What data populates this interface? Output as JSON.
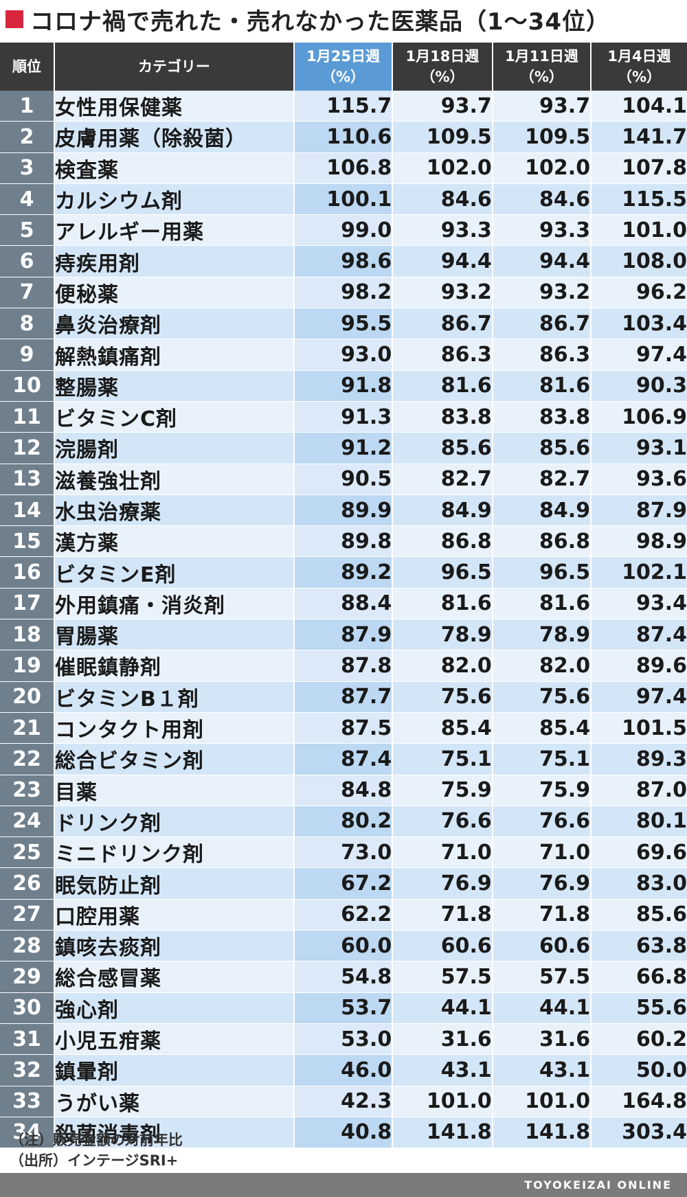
{
  "title": "コロナ禍で売れた・売れなかった医薬品（1〜34位）",
  "headers": {
    "rank": "順位",
    "category": "カテゴリー",
    "w1": "1月25日週",
    "w2": "1月18日週",
    "w3": "1月11日週",
    "w4": "1月4日週",
    "unit": "（%）"
  },
  "rows": [
    {
      "rank": "1",
      "category": "女性用保健薬",
      "w1": "115.7",
      "w2": "93.7",
      "w3": "93.7",
      "w4": "104.1"
    },
    {
      "rank": "2",
      "category": "皮膚用薬（除殺菌）",
      "w1": "110.6",
      "w2": "109.5",
      "w3": "109.5",
      "w4": "141.7"
    },
    {
      "rank": "3",
      "category": "検査薬",
      "w1": "106.8",
      "w2": "102.0",
      "w3": "102.0",
      "w4": "107.8"
    },
    {
      "rank": "4",
      "category": "カルシウム剤",
      "w1": "100.1",
      "w2": "84.6",
      "w3": "84.6",
      "w4": "115.5"
    },
    {
      "rank": "5",
      "category": "アレルギー用薬",
      "w1": "99.0",
      "w2": "93.3",
      "w3": "93.3",
      "w4": "101.0"
    },
    {
      "rank": "6",
      "category": "痔疾用剤",
      "w1": "98.6",
      "w2": "94.4",
      "w3": "94.4",
      "w4": "108.0"
    },
    {
      "rank": "7",
      "category": "便秘薬",
      "w1": "98.2",
      "w2": "93.2",
      "w3": "93.2",
      "w4": "96.2"
    },
    {
      "rank": "8",
      "category": "鼻炎治療剤",
      "w1": "95.5",
      "w2": "86.7",
      "w3": "86.7",
      "w4": "103.4"
    },
    {
      "rank": "9",
      "category": "解熱鎮痛剤",
      "w1": "93.0",
      "w2": "86.3",
      "w3": "86.3",
      "w4": "97.4"
    },
    {
      "rank": "10",
      "category": "整腸薬",
      "w1": "91.8",
      "w2": "81.6",
      "w3": "81.6",
      "w4": "90.3"
    },
    {
      "rank": "11",
      "category": "ビタミンC剤",
      "w1": "91.3",
      "w2": "83.8",
      "w3": "83.8",
      "w4": "106.9"
    },
    {
      "rank": "12",
      "category": "浣腸剤",
      "w1": "91.2",
      "w2": "85.6",
      "w3": "85.6",
      "w4": "93.1"
    },
    {
      "rank": "13",
      "category": "滋養強壮剤",
      "w1": "90.5",
      "w2": "82.7",
      "w3": "82.7",
      "w4": "93.6"
    },
    {
      "rank": "14",
      "category": "水虫治療薬",
      "w1": "89.9",
      "w2": "84.9",
      "w3": "84.9",
      "w4": "87.9"
    },
    {
      "rank": "15",
      "category": "漢方薬",
      "w1": "89.8",
      "w2": "86.8",
      "w3": "86.8",
      "w4": "98.9"
    },
    {
      "rank": "16",
      "category": "ビタミンE剤",
      "w1": "89.2",
      "w2": "96.5",
      "w3": "96.5",
      "w4": "102.1"
    },
    {
      "rank": "17",
      "category": "外用鎮痛・消炎剤",
      "w1": "88.4",
      "w2": "81.6",
      "w3": "81.6",
      "w4": "93.4"
    },
    {
      "rank": "18",
      "category": "胃腸薬",
      "w1": "87.9",
      "w2": "78.9",
      "w3": "78.9",
      "w4": "87.4"
    },
    {
      "rank": "19",
      "category": "催眠鎮静剤",
      "w1": "87.8",
      "w2": "82.0",
      "w3": "82.0",
      "w4": "89.6"
    },
    {
      "rank": "20",
      "category": "ビタミンB１剤",
      "w1": "87.7",
      "w2": "75.6",
      "w3": "75.6",
      "w4": "97.4"
    },
    {
      "rank": "21",
      "category": "コンタクト用剤",
      "w1": "87.5",
      "w2": "85.4",
      "w3": "85.4",
      "w4": "101.5"
    },
    {
      "rank": "22",
      "category": "総合ビタミン剤",
      "w1": "87.4",
      "w2": "75.1",
      "w3": "75.1",
      "w4": "89.3"
    },
    {
      "rank": "23",
      "category": "目薬",
      "w1": "84.8",
      "w2": "75.9",
      "w3": "75.9",
      "w4": "87.0"
    },
    {
      "rank": "24",
      "category": "ドリンク剤",
      "w1": "80.2",
      "w2": "76.6",
      "w3": "76.6",
      "w4": "80.1"
    },
    {
      "rank": "25",
      "category": "ミニドリンク剤",
      "w1": "73.0",
      "w2": "71.0",
      "w3": "71.0",
      "w4": "69.6"
    },
    {
      "rank": "26",
      "category": "眠気防止剤",
      "w1": "67.2",
      "w2": "76.9",
      "w3": "76.9",
      "w4": "83.0"
    },
    {
      "rank": "27",
      "category": "口腔用薬",
      "w1": "62.2",
      "w2": "71.8",
      "w3": "71.8",
      "w4": "85.6"
    },
    {
      "rank": "28",
      "category": "鎮咳去痰剤",
      "w1": "60.0",
      "w2": "60.6",
      "w3": "60.6",
      "w4": "63.8"
    },
    {
      "rank": "29",
      "category": "総合感冒薬",
      "w1": "54.8",
      "w2": "57.5",
      "w3": "57.5",
      "w4": "66.8"
    },
    {
      "rank": "30",
      "category": "強心剤",
      "w1": "53.7",
      "w2": "44.1",
      "w3": "44.1",
      "w4": "55.6"
    },
    {
      "rank": "31",
      "category": "小児五疳薬",
      "w1": "53.0",
      "w2": "31.6",
      "w3": "31.6",
      "w4": "60.2"
    },
    {
      "rank": "32",
      "category": "鎮暈剤",
      "w1": "46.0",
      "w2": "43.1",
      "w3": "43.1",
      "w4": "50.0"
    },
    {
      "rank": "33",
      "category": "うがい薬",
      "w1": "42.3",
      "w2": "101.0",
      "w3": "101.0",
      "w4": "164.8"
    },
    {
      "rank": "34",
      "category": "殺菌消毒剤",
      "w1": "40.8",
      "w2": "141.8",
      "w3": "141.8",
      "w4": "303.4"
    }
  ],
  "notes": {
    "note": "（注）販売金額の対前年比",
    "source": "（出所）インテージSRI+"
  },
  "footer": "TOYOKEIZAI ONLINE",
  "colors": {
    "accent": "#d7263d",
    "header_bg": "#3a3a3a",
    "header_current": "#5b9bd5",
    "rank_bg": "#6f7f8c",
    "row_light": "#e9f2fb",
    "row_dark": "#d3e6f7"
  }
}
